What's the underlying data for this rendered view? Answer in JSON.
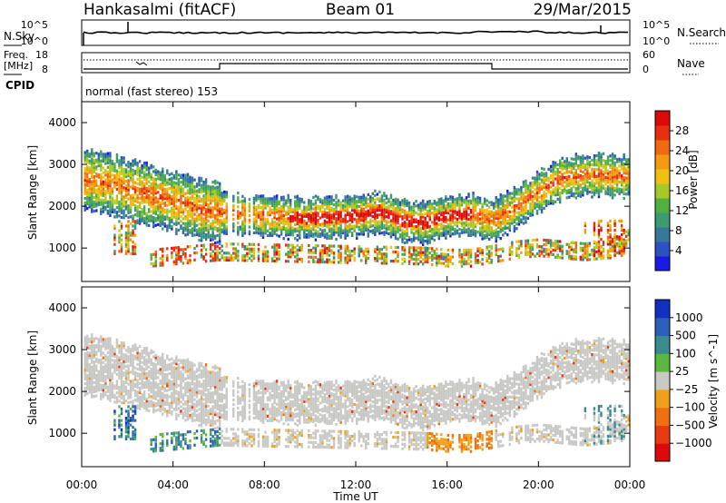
{
  "header": {
    "station": "Hankasalmi (fitACF)",
    "beam": "Beam 01",
    "date": "29/Mar/2015"
  },
  "panels": {
    "nsky": {
      "left_label": "N.Sky",
      "right_label": "N.Search",
      "left_ticks": [
        "10^5",
        "10^0"
      ],
      "right_ticks": [
        "10^5",
        "10^0"
      ]
    },
    "freq": {
      "left_label_1": "Freq.",
      "left_label_2": "[MHz]",
      "left_ticks": [
        "18",
        "8"
      ],
      "right_label": "Nave",
      "right_ticks": [
        "60",
        "0"
      ]
    },
    "cpid": {
      "label": "CPID",
      "text": "normal (fast stereo) 153"
    }
  },
  "chart_data": [
    {
      "type": "heatmap",
      "parameter": "power",
      "ylabel": "Slant Range [km]",
      "ylim": [
        200,
        4500
      ],
      "yticks": [
        "1000",
        "2000",
        "3000",
        "4000"
      ],
      "xlim": [
        "00:00",
        "24:00"
      ],
      "colorbar": {
        "label": "Power [dB]",
        "range": [
          0,
          32
        ],
        "ticks": [
          "4",
          "8",
          "12",
          "16",
          "20",
          "24",
          "28"
        ],
        "colors": [
          "#1a1ae6",
          "#2a52c0",
          "#36789a",
          "#3e9a70",
          "#52b040",
          "#a8c828",
          "#f0c010",
          "#f49a10",
          "#f06a10",
          "#e83010",
          "#dc0a0a"
        ]
      },
      "bands": [
        {
          "name": "main-echo",
          "points": [
            [
              0,
              2700
            ],
            [
              1,
              2600
            ],
            [
              2,
              2450
            ],
            [
              3,
              2300
            ],
            [
              4,
              2150
            ],
            [
              5,
              2000
            ],
            [
              6,
              1900
            ],
            [
              8,
              1800
            ],
            [
              10,
              1750
            ],
            [
              12,
              1800
            ],
            [
              13,
              1900
            ],
            [
              14,
              1700
            ],
            [
              15,
              1650
            ],
            [
              16,
              1800
            ],
            [
              17,
              1850
            ],
            [
              18,
              1700
            ],
            [
              19,
              2000
            ],
            [
              20,
              2400
            ],
            [
              21,
              2700
            ],
            [
              22,
              2800
            ],
            [
              24,
              2750
            ]
          ]
        },
        {
          "name": "lower-echo",
          "points": [
            [
              3,
              800
            ],
            [
              4,
              850
            ],
            [
              5,
              900
            ],
            [
              6,
              950
            ],
            [
              15,
              850
            ],
            [
              16,
              800
            ],
            [
              17,
              800
            ],
            [
              18,
              900
            ],
            [
              19,
              1000
            ],
            [
              20,
              1050
            ],
            [
              21,
              1000
            ],
            [
              22,
              950
            ],
            [
              23,
              1000
            ],
            [
              24,
              1300
            ]
          ]
        }
      ]
    },
    {
      "type": "heatmap",
      "parameter": "velocity",
      "ylabel": "Slant Range [km]",
      "ylim": [
        200,
        4500
      ],
      "yticks": [
        "1000",
        "2000",
        "3000",
        "4000"
      ],
      "xlim": [
        "00:00",
        "24:00"
      ],
      "colorbar": {
        "label": "Velocity [m s^-1]",
        "ticks": [
          "1000",
          "500",
          "100",
          "25",
          "−25",
          "−100",
          "−500",
          "−1000"
        ],
        "colors": [
          "#1030c0",
          "#2a60b8",
          "#3a8a90",
          "#5ab840",
          "#c8c8c4",
          "#f0a018",
          "#ee7010",
          "#e83a10",
          "#dc0a0a"
        ]
      }
    }
  ],
  "xaxis": {
    "label": "Time UT",
    "ticks": [
      "00:00",
      "04:00",
      "08:00",
      "12:00",
      "16:00",
      "20:00",
      "00:00"
    ]
  }
}
